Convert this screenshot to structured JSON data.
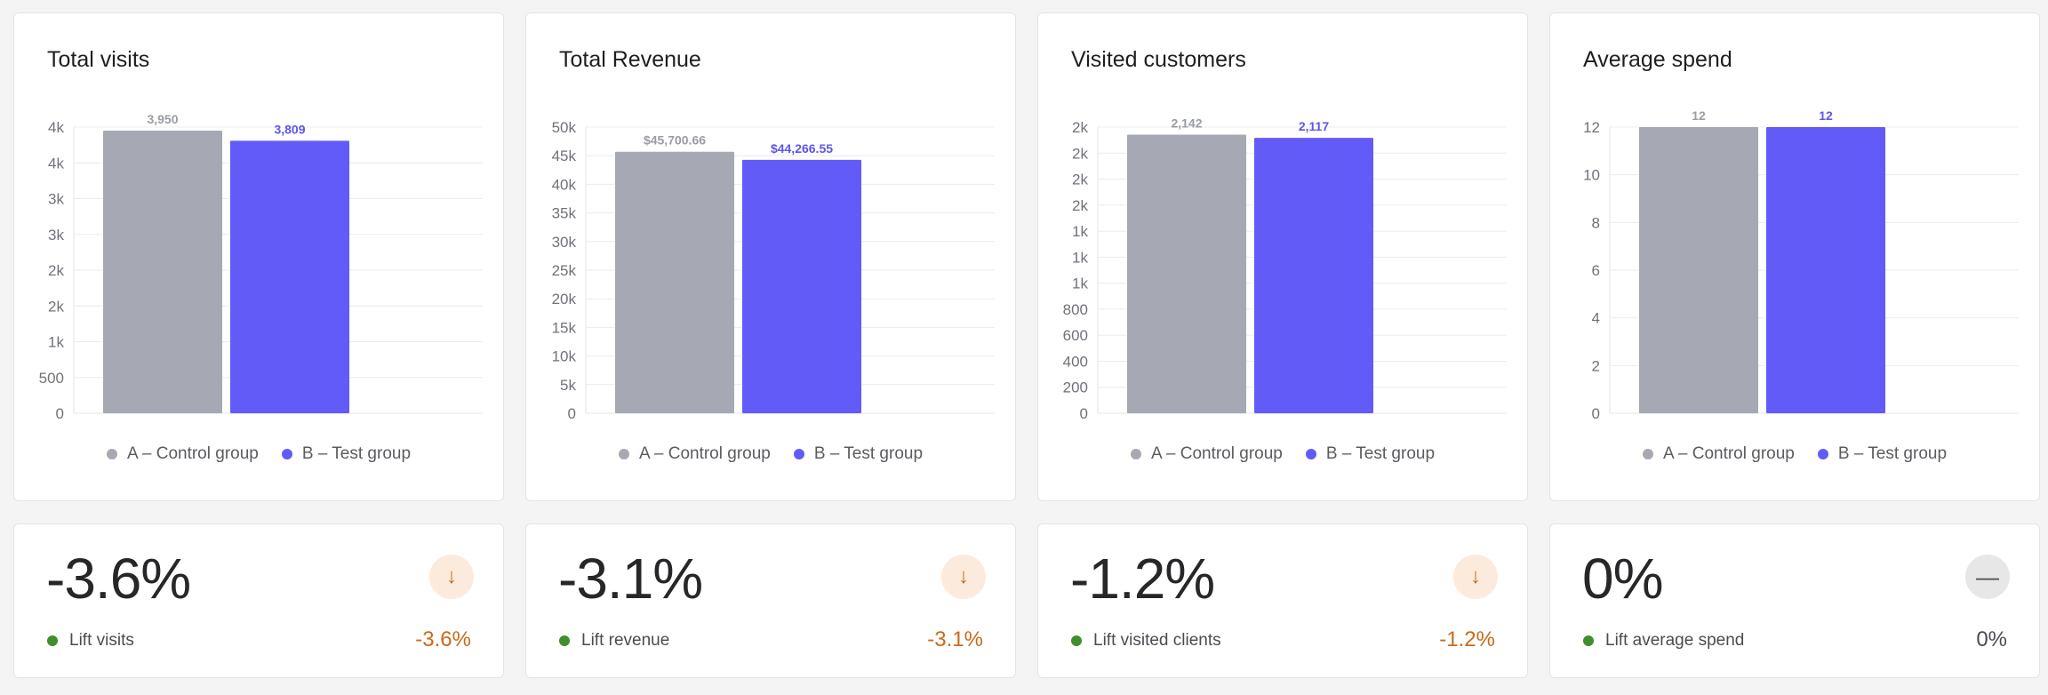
{
  "legend": {
    "a": "A – Control group",
    "b": "B – Test group"
  },
  "colors": {
    "a": "#a6a9b4",
    "b": "#635bf7",
    "down": "#c96a1b",
    "positive_dot": "#3f8f2b"
  },
  "charts": [
    {
      "title": "Total visits"
    },
    {
      "title": "Total Revenue"
    },
    {
      "title": "Visited customers"
    },
    {
      "title": "Average spend"
    }
  ],
  "chart_data": [
    {
      "type": "bar",
      "title": "Total visits",
      "categories": [
        "A – Control group",
        "B – Test group"
      ],
      "values": [
        3950,
        3809
      ],
      "data_labels": [
        "3,950",
        "3,809"
      ],
      "y_ticks": [
        "0",
        "500",
        "1k",
        "2k",
        "2k",
        "3k",
        "3k",
        "4k",
        "4k"
      ],
      "ylim": [
        0,
        4000
      ]
    },
    {
      "type": "bar",
      "title": "Total Revenue",
      "categories": [
        "A – Control group",
        "B – Test group"
      ],
      "values": [
        45700.66,
        44266.55
      ],
      "data_labels": [
        "$45,700.66",
        "$44,266.55"
      ],
      "y_ticks": [
        "0",
        "5k",
        "10k",
        "15k",
        "20k",
        "25k",
        "30k",
        "35k",
        "40k",
        "45k",
        "50k"
      ],
      "ylim": [
        0,
        50000
      ]
    },
    {
      "type": "bar",
      "title": "Visited customers",
      "categories": [
        "A – Control group",
        "B – Test group"
      ],
      "values": [
        2142,
        2117
      ],
      "data_labels": [
        "2,142",
        "2,117"
      ],
      "y_ticks": [
        "0",
        "200",
        "400",
        "600",
        "800",
        "1k",
        "1k",
        "1k",
        "2k",
        "2k",
        "2k",
        "2k"
      ],
      "ylim": [
        0,
        2200
      ]
    },
    {
      "type": "bar",
      "title": "Average spend",
      "categories": [
        "A – Control group",
        "B – Test group"
      ],
      "values": [
        12,
        12
      ],
      "data_labels": [
        "12",
        "12"
      ],
      "y_ticks": [
        "0",
        "2",
        "4",
        "6",
        "8",
        "10",
        "12"
      ],
      "ylim": [
        0,
        12
      ]
    }
  ],
  "kpis": [
    {
      "value": "-3.6%",
      "label": "Lift visits",
      "change": "-3.6%",
      "icon": "arrow-down-icon",
      "icon_glyph": "↓"
    },
    {
      "value": "-3.1%",
      "label": "Lift revenue",
      "change": "-3.1%",
      "icon": "arrow-down-icon",
      "icon_glyph": "↓"
    },
    {
      "value": "-1.2%",
      "label": "Lift visited clients",
      "change": "-1.2%",
      "icon": "arrow-down-icon",
      "icon_glyph": "↓"
    },
    {
      "value": "0%",
      "label": "Lift average spend",
      "change": "0%",
      "icon": "minus-icon",
      "icon_glyph": "—"
    }
  ]
}
